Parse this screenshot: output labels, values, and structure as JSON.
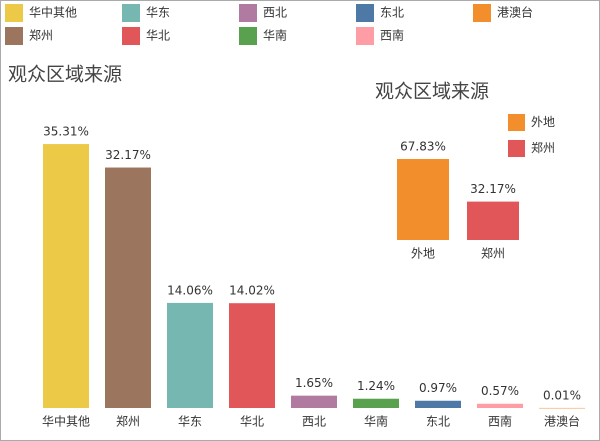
{
  "chart_data": [
    {
      "type": "bar",
      "title": "观众区域来源",
      "categories": [
        "华中其他",
        "郑州",
        "华东",
        "华北",
        "西北",
        "华南",
        "东北",
        "西南",
        "港澳台"
      ],
      "values": [
        35.31,
        32.17,
        14.06,
        14.02,
        1.65,
        1.24,
        0.97,
        0.57,
        0.01
      ],
      "value_labels": [
        "35.31%",
        "32.17%",
        "14.06%",
        "14.02%",
        "1.65%",
        "1.24%",
        "0.97%",
        "0.57%",
        "0.01%"
      ],
      "colors": [
        "#edc948",
        "#9c755f",
        "#76b7b2",
        "#e15759",
        "#b07aa1",
        "#59a14f",
        "#4e79a7",
        "#ff9da7",
        "#f28e2b"
      ],
      "ylim": [
        0,
        40
      ],
      "legend": [
        {
          "name": "华中其他",
          "color": "#edc948"
        },
        {
          "name": "华东",
          "color": "#76b7b2"
        },
        {
          "name": "西北",
          "color": "#b07aa1"
        },
        {
          "name": "东北",
          "color": "#4e79a7"
        },
        {
          "name": "港澳台",
          "color": "#f28e2b"
        },
        {
          "name": "郑州",
          "color": "#9c755f"
        },
        {
          "name": "华北",
          "color": "#e15759"
        },
        {
          "name": "华南",
          "color": "#59a14f"
        },
        {
          "name": "西南",
          "color": "#ff9da7"
        }
      ]
    },
    {
      "type": "bar",
      "title": "观众区域来源",
      "categories": [
        "外地",
        "郑州"
      ],
      "values": [
        67.83,
        32.17
      ],
      "value_labels": [
        "67.83%",
        "32.17%"
      ],
      "colors": [
        "#f28e2b",
        "#e15759"
      ],
      "ylim": [
        0,
        80
      ],
      "legend": [
        {
          "name": "外地",
          "color": "#f28e2b"
        },
        {
          "name": "郑州",
          "color": "#e15759"
        }
      ]
    }
  ]
}
